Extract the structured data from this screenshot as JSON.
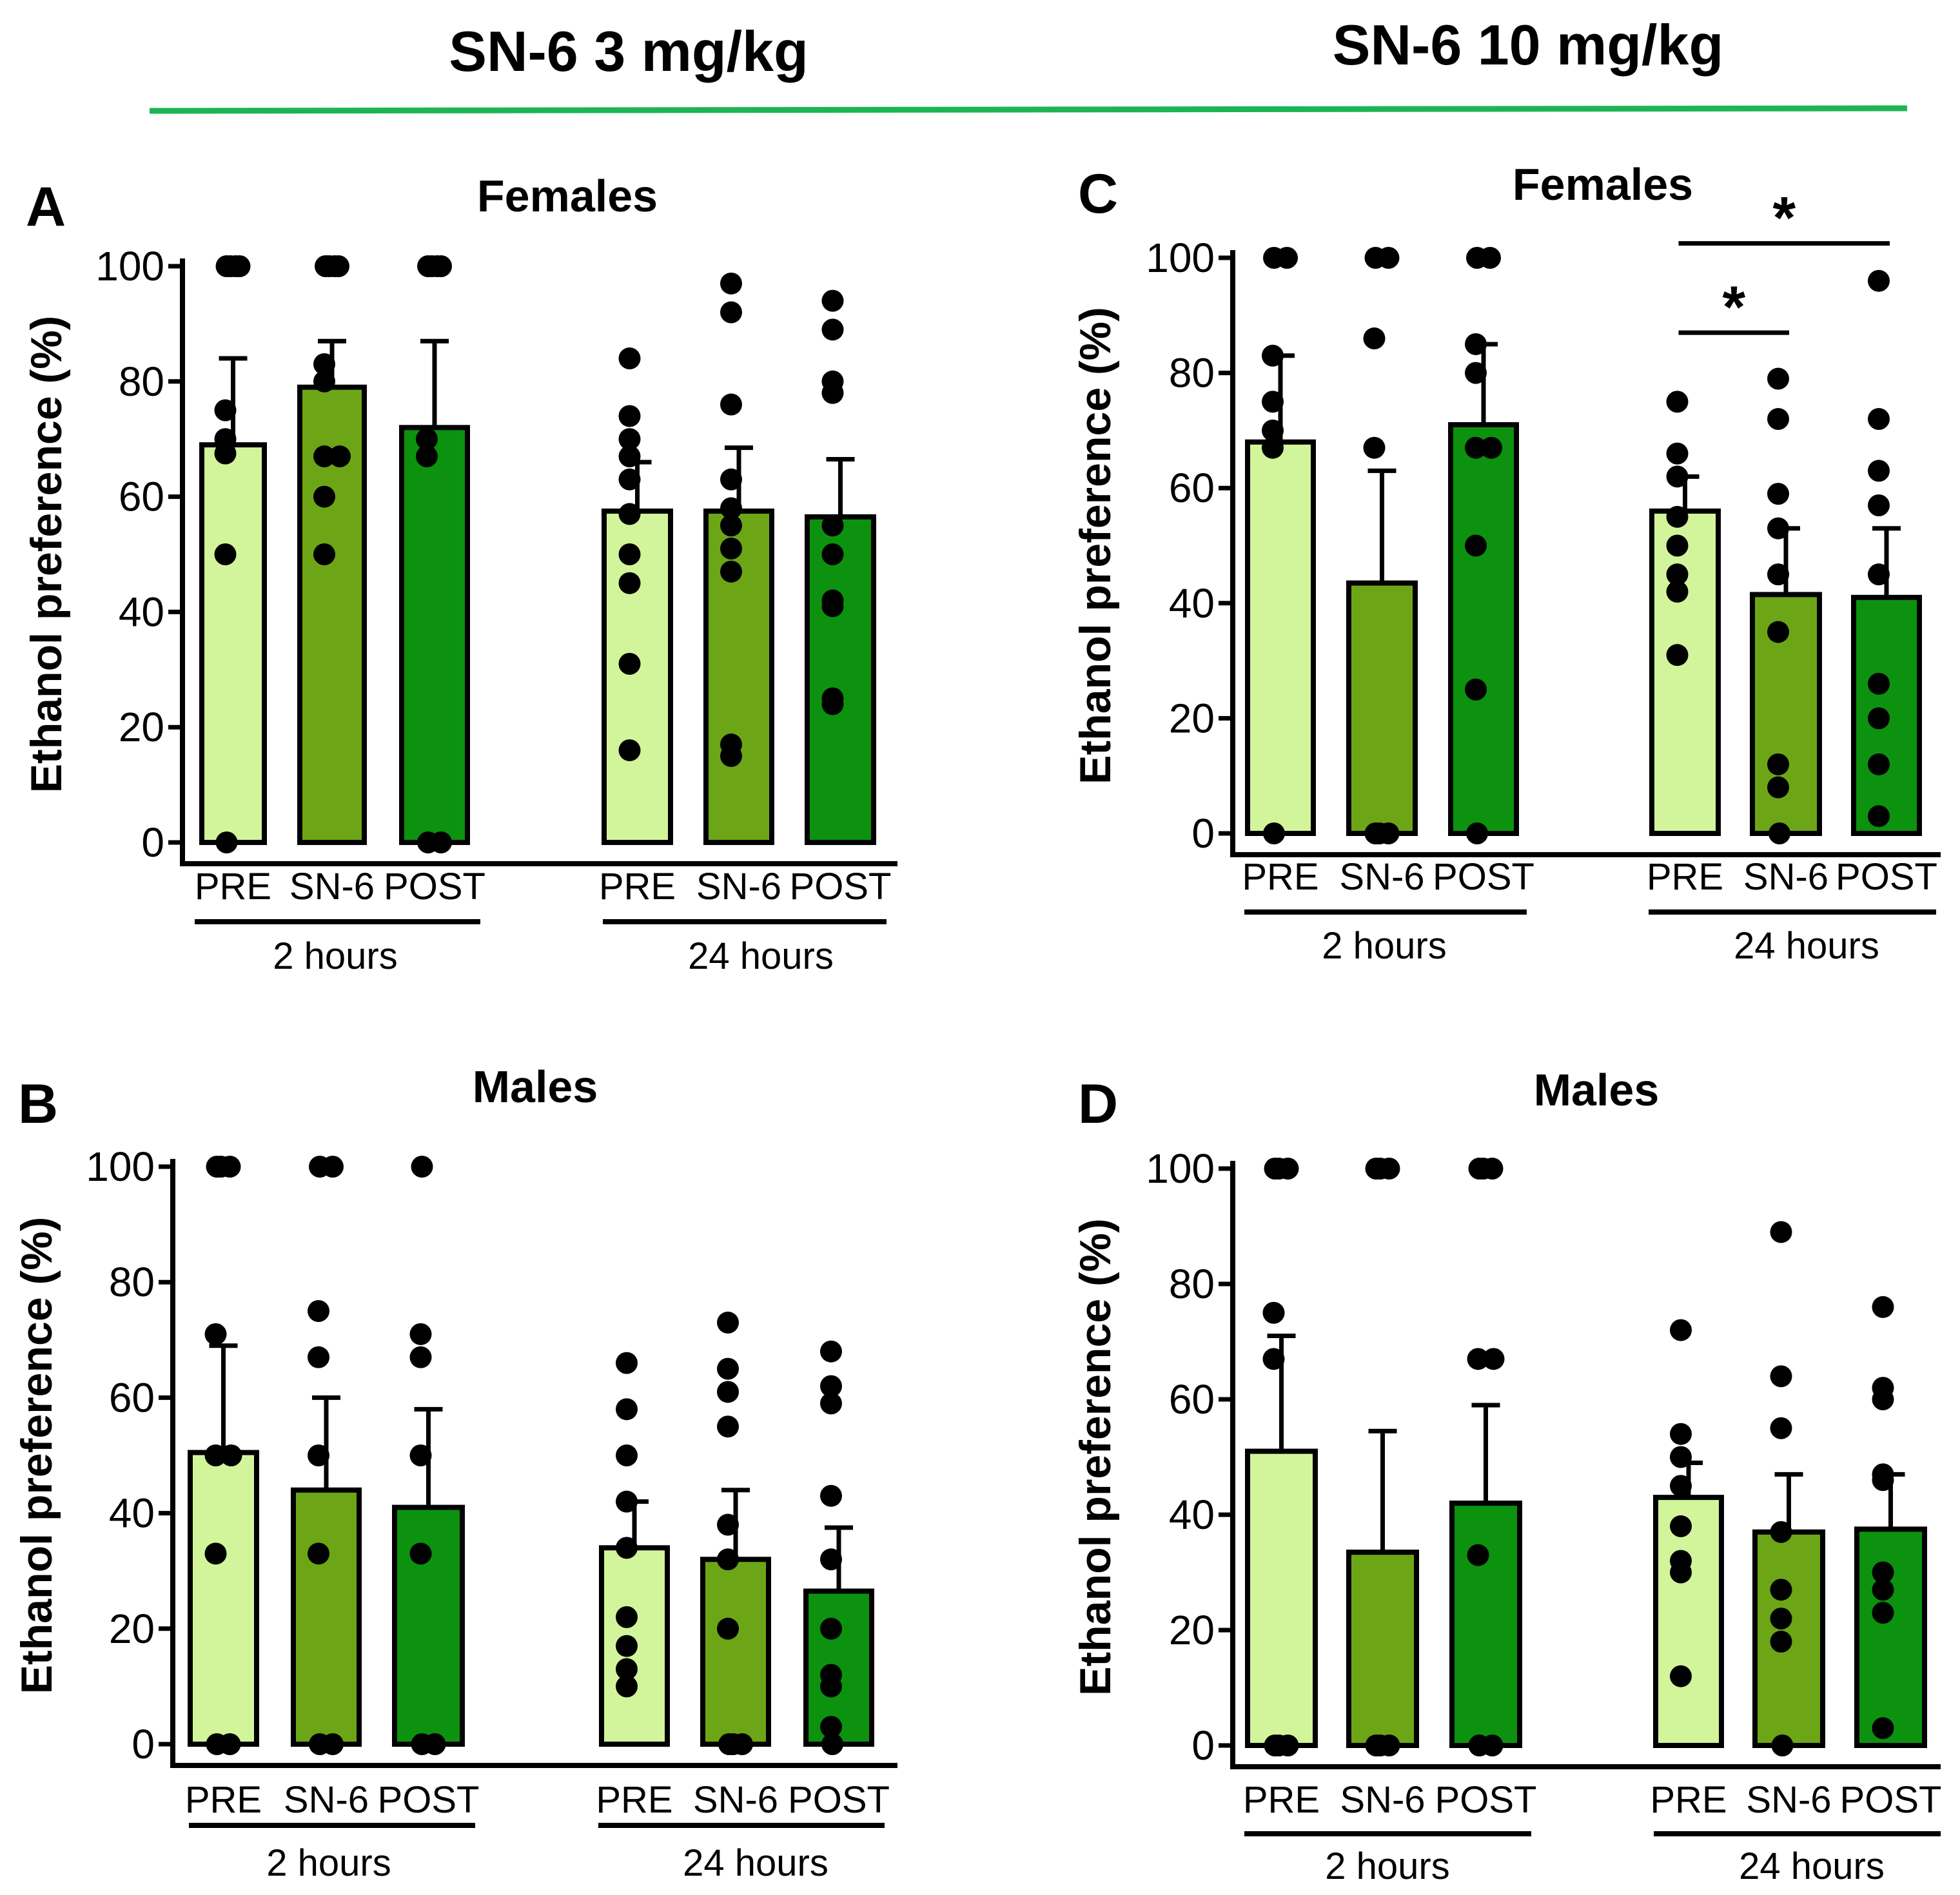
{
  "header": {
    "left_title": "SN-6 3 mg/kg",
    "right_title": "SN-6 10 mg/kg",
    "rule_color": "#1db553"
  },
  "colors": {
    "pre": "#d2f59b",
    "sn6": "#6ca617",
    "post": "#0c920e",
    "axis": "#000000",
    "dot": "#000000"
  },
  "chart_data": [
    {
      "panel": "A",
      "type": "bar",
      "title": "Females",
      "ylabel": "Ethanol preference (%)",
      "ylim": [
        0,
        100
      ],
      "yticks": [
        "0",
        "20",
        "40",
        "60",
        "80",
        "100"
      ],
      "categories": [
        "PRE",
        "SN-6",
        "POST",
        "PRE",
        "SN-6",
        "POST"
      ],
      "groups": [
        {
          "label": "2 hours"
        },
        {
          "label": "24 hours"
        }
      ],
      "means": [
        69,
        79,
        72,
        57.5,
        57.5,
        56.5
      ],
      "errors": [
        84,
        87,
        87,
        66,
        68.5,
        66.5
      ],
      "points": [
        [
          0,
          50,
          67.5,
          70,
          75,
          100,
          100,
          100,
          100
        ],
        [
          50,
          60,
          67,
          67,
          80,
          83,
          100,
          100,
          100,
          100
        ],
        [
          0,
          0,
          67,
          70,
          100,
          100,
          100,
          100
        ],
        [
          16,
          31,
          45,
          50,
          57,
          63,
          67,
          70,
          74,
          84
        ],
        [
          15,
          17,
          47,
          51,
          55,
          58,
          63,
          76,
          92,
          97
        ],
        [
          24,
          25,
          41,
          42,
          50,
          55,
          78,
          80,
          89,
          94
        ]
      ],
      "significance": []
    },
    {
      "panel": "B",
      "type": "bar",
      "title": "Males",
      "ylabel": "Ethanol preference (%)",
      "ylim": [
        0,
        100
      ],
      "yticks": [
        "0",
        "20",
        "40",
        "60",
        "80",
        "100"
      ],
      "categories": [
        "PRE",
        "SN-6",
        "POST",
        "PRE",
        "SN-6",
        "POST"
      ],
      "groups": [
        {
          "label": "2 hours"
        },
        {
          "label": "24 hours"
        }
      ],
      "means": [
        50.5,
        44,
        41,
        34,
        32,
        26.5
      ],
      "errors": [
        69,
        60,
        58,
        42,
        44,
        37.5
      ],
      "points": [
        [
          0,
          0,
          33,
          50,
          50,
          71,
          100,
          100,
          100
        ],
        [
          0,
          0,
          33,
          50,
          67,
          75,
          100,
          100
        ],
        [
          0,
          0,
          33,
          50,
          67,
          71,
          100
        ],
        [
          10,
          13,
          17,
          22,
          34,
          42,
          50,
          58,
          66
        ],
        [
          0,
          0,
          0,
          20,
          32,
          38,
          55,
          61,
          65,
          73
        ],
        [
          0,
          3,
          10,
          12,
          20,
          32,
          43,
          59,
          62,
          68
        ]
      ],
      "significance": []
    },
    {
      "panel": "C",
      "type": "bar",
      "title": "Females",
      "ylabel": "Ethanol preference (%)",
      "ylim": [
        0,
        100
      ],
      "yticks": [
        "0",
        "20",
        "40",
        "60",
        "80",
        "100"
      ],
      "categories": [
        "PRE",
        "SN-6",
        "POST",
        "PRE",
        "SN-6",
        "POST"
      ],
      "groups": [
        {
          "label": "2 hours"
        },
        {
          "label": "24 hours"
        }
      ],
      "means": [
        68,
        43.5,
        71,
        56,
        41.5,
        41
      ],
      "errors": [
        83,
        63,
        85,
        62,
        53,
        53
      ],
      "points": [
        [
          0,
          67,
          70,
          75,
          83,
          100,
          100
        ],
        [
          0,
          0,
          0,
          67,
          86,
          100,
          100
        ],
        [
          0,
          25,
          50,
          67,
          67,
          80,
          85,
          100,
          100
        ],
        [
          31,
          42,
          45,
          50,
          55,
          62,
          66,
          75
        ],
        [
          0,
          8,
          12,
          35,
          45,
          53,
          59,
          72,
          79
        ],
        [
          3,
          12,
          20,
          26,
          45,
          57,
          63,
          72,
          96
        ]
      ],
      "significance": [
        {
          "label": "*",
          "from": 3,
          "to": 4
        },
        {
          "label": "*",
          "from": 3,
          "to": 5
        }
      ]
    },
    {
      "panel": "D",
      "type": "bar",
      "title": "Males",
      "ylabel": "Ethanol preference (%)",
      "ylim": [
        0,
        100
      ],
      "yticks": [
        "0",
        "20",
        "40",
        "60",
        "80",
        "100"
      ],
      "categories": [
        "PRE",
        "SN-6",
        "POST",
        "PRE",
        "SN-6",
        "POST"
      ],
      "groups": [
        {
          "label": "2 hours"
        },
        {
          "label": "24 hours"
        }
      ],
      "means": [
        51,
        33.5,
        42,
        43,
        37,
        37.5
      ],
      "errors": [
        71,
        54.5,
        59,
        49,
        47,
        47
      ],
      "points": [
        [
          0,
          0,
          0,
          67,
          75,
          100,
          100,
          100
        ],
        [
          0,
          0,
          0,
          100,
          100,
          100
        ],
        [
          0,
          0,
          33,
          67,
          67,
          100,
          100,
          100
        ],
        [
          12,
          30,
          32,
          38,
          45,
          50,
          54,
          72
        ],
        [
          0,
          18,
          22,
          27,
          37,
          55,
          64,
          89
        ],
        [
          3,
          23,
          27,
          30,
          46,
          47,
          60,
          62,
          76
        ]
      ],
      "significance": []
    }
  ]
}
